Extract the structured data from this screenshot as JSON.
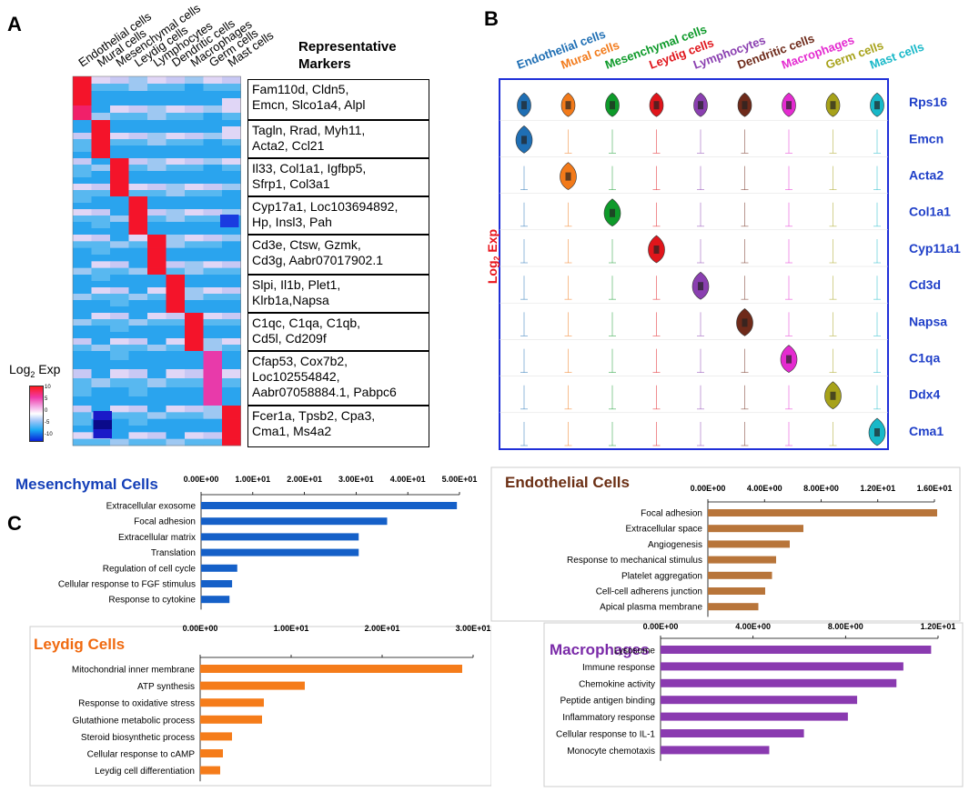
{
  "panel_labels": {
    "a": "A",
    "b": "B",
    "c": "C"
  },
  "panel_a": {
    "columns": [
      "Endothelial cells",
      "Mural cells",
      "Mesenchymal cells",
      "Leydig cells",
      "Lymphocytes",
      "Dendritic cells",
      "Macrophages",
      "Germ cells",
      "Mast cells"
    ],
    "markers_title": [
      "Representative",
      "Markers"
    ],
    "markers": [
      [
        "Fam110d, Cldn5,",
        "Emcn, Slco1a4, Alpl"
      ],
      [
        "Tagln, Rrad, Myh11,",
        "Acta2, Ccl21"
      ],
      [
        "Il33, Col1a1, Igfbp5,",
        "Sfrp1, Col3a1"
      ],
      [
        "Cyp17a1, Loc103694892,",
        "Hp, Insl3, Pah"
      ],
      [
        "Cd3e, Ctsw, Gzmk,",
        "Cd3g, Aabr07017902.1"
      ],
      [
        "Slpi, Il1b, Plet1,",
        "Klrb1a,Napsa"
      ],
      [
        "C1qc, C1qa, C1qb,",
        "Cd5l, Cd209f"
      ],
      [
        "Cfap53, Cox7b2,",
        "Loc102554842,",
        "Aabr07058884.1, Pabpc6"
      ],
      [
        "Fcer1a, Tpsb2, Cpa3,",
        "Cma1, Ms4a2"
      ]
    ],
    "legend": {
      "title": "Log",
      "sub": "2",
      "suffix": " Exp",
      "ticks": [
        "10",
        "5",
        "0",
        "-5",
        "-10"
      ]
    }
  },
  "panel_b": {
    "cells": [
      {
        "name": "Endothelial cells",
        "color": "#1f6fb4"
      },
      {
        "name": "Mural cells",
        "color": "#f27a1a"
      },
      {
        "name": "Mesenchymal cells",
        "color": "#0e9a2a"
      },
      {
        "name": "Leydig cells",
        "color": "#e0151b"
      },
      {
        "name": "Lymphocytes",
        "color": "#8a3fb0"
      },
      {
        "name": "Dendritic cells",
        "color": "#6e2a1a"
      },
      {
        "name": "Macrophages",
        "color": "#e42bd0"
      },
      {
        "name": "Germ cells",
        "color": "#a7a21a"
      },
      {
        "name": "Mast cells",
        "color": "#18b8c8"
      }
    ],
    "genes": [
      "Rps16",
      "Emcn",
      "Acta2",
      "Col1a1",
      "Cyp11a1",
      "Cd3d",
      "Napsa",
      "C1qa",
      "Ddx4",
      "Cma1"
    ],
    "ylabel": {
      "base": "Log",
      "sub": "2",
      "suffix": " Exp"
    }
  },
  "chart_data": [
    {
      "type": "bar",
      "title": "Mesenchymal Cells",
      "color": "#1560c8",
      "title_color": "#1540b8",
      "categories": [
        "Extracellular exosome",
        "Focal adhesion",
        "Extracellular matrix",
        "Translation",
        "Regulation of cell cycle",
        "Cellular response to FGF stimulus",
        "Response to cytokine"
      ],
      "values": [
        49.5,
        36,
        30.5,
        30.5,
        7,
        6,
        5.5
      ],
      "xlim": [
        0,
        50
      ],
      "ticks": [
        "0.00E+00",
        "1.00E+01",
        "2.00E+01",
        "3.00E+01",
        "4.00E+01",
        "5.00E+01"
      ]
    },
    {
      "type": "bar",
      "title": "Endothelial Cells",
      "color": "#b8753a",
      "title_color": "#6b2f14",
      "categories": [
        "Focal adhesion",
        "Extracellular space",
        "Angiogenesis",
        "Response to mechanical stimulus",
        "Platelet aggregation",
        "Cell-cell adherens junction",
        "Apical plasma membrane"
      ],
      "values": [
        16.8,
        7,
        6,
        5,
        4.7,
        4.2,
        3.7
      ],
      "xlim": [
        0,
        16.6
      ],
      "ticks": [
        "0.00E+00",
        "4.00E+00",
        "8.00E+00",
        "1.20E+01",
        "1.60E+01"
      ]
    },
    {
      "type": "bar",
      "title": "Leydig Cells",
      "color": "#f57c1a",
      "title_color": "#f06a10",
      "categories": [
        "Mitochondrial inner membrane",
        "ATP synthesis",
        "Response to oxidative stress",
        "Glutathione metabolic process",
        "Steroid biosynthetic process",
        "Cellular response to cAMP",
        "Leydig cell differentiation"
      ],
      "values": [
        28.8,
        11.5,
        7,
        6.8,
        3.5,
        2.5,
        2.2
      ],
      "xlim": [
        0,
        30
      ],
      "ticks": [
        "0.00E+00",
        "1.00E+01",
        "2.00E+01",
        "3.00E+01"
      ]
    },
    {
      "type": "bar",
      "title": "Macrophages",
      "color": "#8a3ab0",
      "title_color": "#7a2aa8",
      "categories": [
        "Lysosome",
        "Immune response",
        "Chemokine activity",
        "Peptide antigen binding",
        "Inflammatory response",
        "Cellular response to IL-1",
        "Monocyte chemotaxis"
      ],
      "values": [
        11.7,
        10.5,
        10.2,
        8.5,
        8.1,
        6.2,
        4.7
      ],
      "xlim": [
        0,
        12
      ],
      "ticks": [
        "0.00E+00",
        "4.00E+00",
        "8.00E+00",
        "1.20E+01"
      ]
    }
  ]
}
